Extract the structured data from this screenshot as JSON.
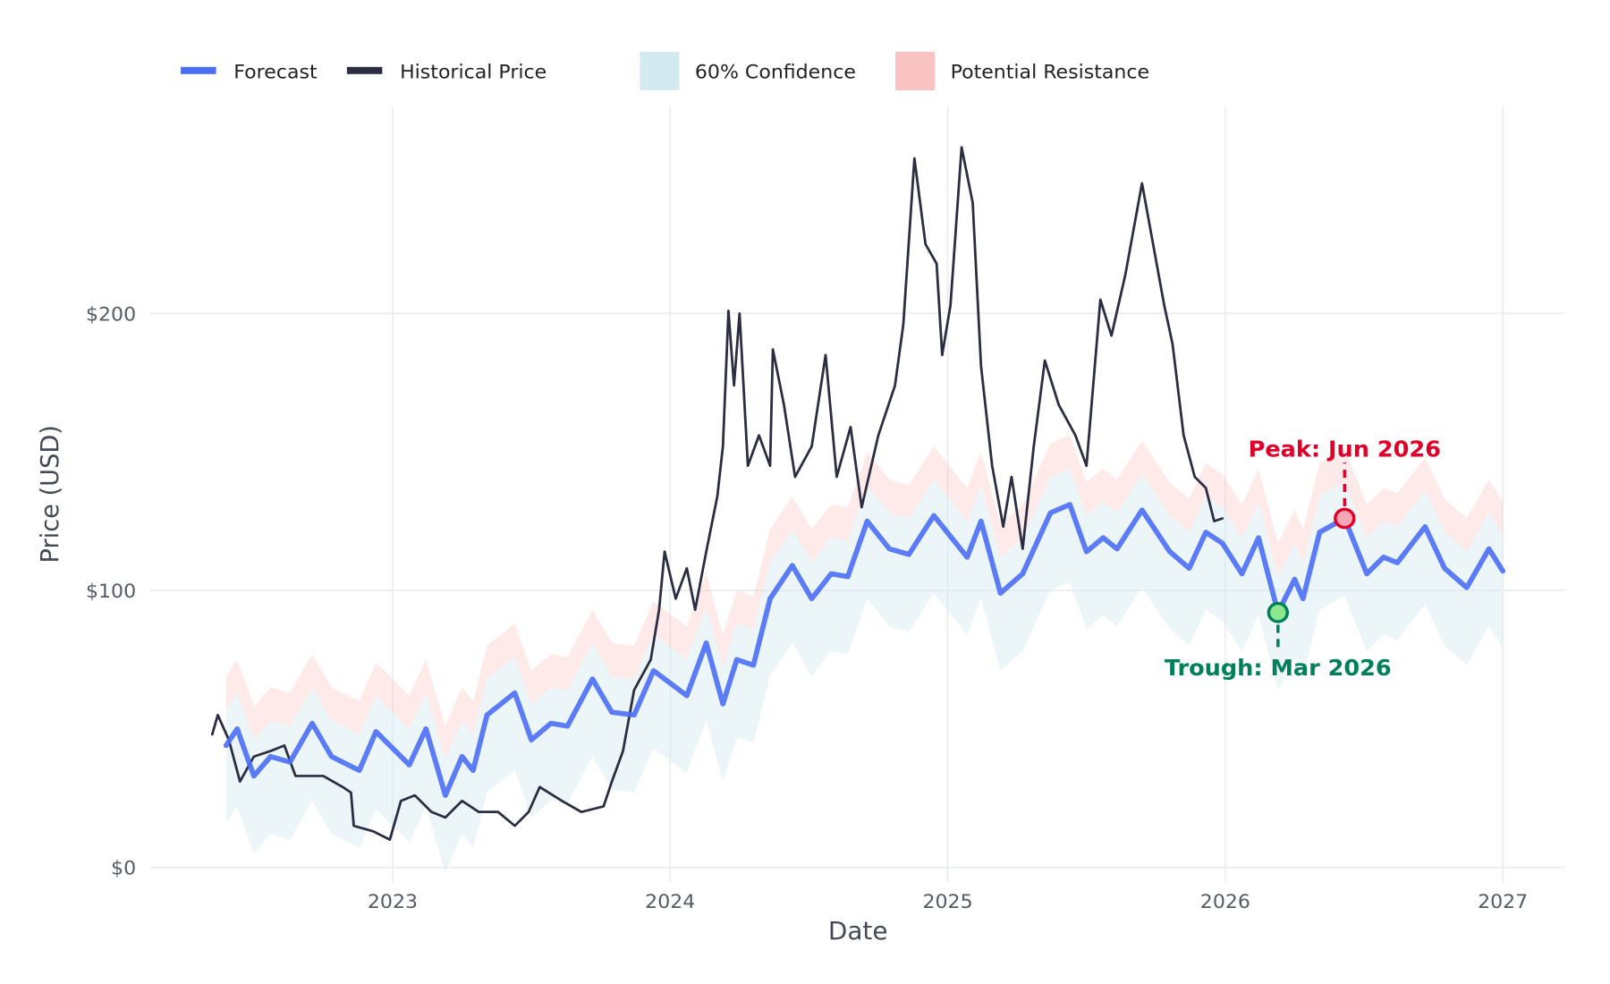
{
  "chart_data": {
    "type": "line",
    "title": "",
    "xlabel": "Date",
    "ylabel": "Price (USD)",
    "xlim": [
      2022.2,
      2027.22
    ],
    "ylim": [
      -5,
      262
    ],
    "grid": true,
    "legend_position": "top-left",
    "x_ticks": [
      {
        "value": 2023,
        "label": "2023"
      },
      {
        "value": 2024,
        "label": "2024"
      },
      {
        "value": 2025,
        "label": "2025"
      },
      {
        "value": 2026,
        "label": "2026"
      },
      {
        "value": 2027,
        "label": "2027"
      }
    ],
    "y_ticks": [
      {
        "value": 0,
        "label": "$0"
      },
      {
        "value": 100,
        "label": "$100"
      },
      {
        "value": 200,
        "label": "$200"
      }
    ],
    "legend": [
      {
        "name": "Forecast",
        "kind": "line",
        "color": "#4c6ef5"
      },
      {
        "name": "Historical Price",
        "kind": "line",
        "color": "#2b2d42"
      },
      {
        "name": "60% Confidence",
        "kind": "area",
        "color": "#d4eaf1"
      },
      {
        "name": "Potential Resistance",
        "kind": "area",
        "color": "#f8c3c0"
      }
    ],
    "bands": {
      "confidence": {
        "lower_offset": -28,
        "upper_offset": 13,
        "color": "#d4eaf1",
        "opacity": 0.45
      },
      "resistance": {
        "lower_offset": 13,
        "upper_offset": 25,
        "color": "#f8c3c0",
        "opacity": 0.35
      }
    },
    "series": [
      {
        "name": "Historical Price",
        "color": "#2b2d42",
        "points": [
          [
            2022.35,
            48
          ],
          [
            2022.37,
            55
          ],
          [
            2022.41,
            46
          ],
          [
            2022.45,
            31
          ],
          [
            2022.5,
            40
          ],
          [
            2022.56,
            42
          ],
          [
            2022.61,
            44
          ],
          [
            2022.65,
            33
          ],
          [
            2022.75,
            33
          ],
          [
            2022.82,
            29
          ],
          [
            2022.85,
            27
          ],
          [
            2022.86,
            15
          ],
          [
            2022.93,
            13
          ],
          [
            2022.99,
            10
          ],
          [
            2023.03,
            24
          ],
          [
            2023.08,
            26
          ],
          [
            2023.14,
            20
          ],
          [
            2023.19,
            18
          ],
          [
            2023.25,
            24
          ],
          [
            2023.31,
            20
          ],
          [
            2023.38,
            20
          ],
          [
            2023.44,
            15
          ],
          [
            2023.49,
            20
          ],
          [
            2023.53,
            29
          ],
          [
            2023.61,
            24
          ],
          [
            2023.68,
            20
          ],
          [
            2023.76,
            22
          ],
          [
            2023.79,
            31
          ],
          [
            2023.83,
            42
          ],
          [
            2023.87,
            64
          ],
          [
            2023.93,
            75
          ],
          [
            2023.96,
            93
          ],
          [
            2023.98,
            114
          ],
          [
            2024.02,
            97
          ],
          [
            2024.06,
            108
          ],
          [
            2024.09,
            93
          ],
          [
            2024.13,
            114
          ],
          [
            2024.17,
            134
          ],
          [
            2024.19,
            152
          ],
          [
            2024.21,
            201
          ],
          [
            2024.23,
            174
          ],
          [
            2024.25,
            200
          ],
          [
            2024.28,
            145
          ],
          [
            2024.32,
            156
          ],
          [
            2024.36,
            145
          ],
          [
            2024.37,
            187
          ],
          [
            2024.41,
            167
          ],
          [
            2024.45,
            141
          ],
          [
            2024.51,
            152
          ],
          [
            2024.56,
            185
          ],
          [
            2024.6,
            141
          ],
          [
            2024.65,
            159
          ],
          [
            2024.69,
            130
          ],
          [
            2024.75,
            156
          ],
          [
            2024.81,
            174
          ],
          [
            2024.84,
            196
          ],
          [
            2024.88,
            256
          ],
          [
            2024.92,
            225
          ],
          [
            2024.96,
            218
          ],
          [
            2024.98,
            185
          ],
          [
            2025.01,
            203
          ],
          [
            2025.05,
            260
          ],
          [
            2025.09,
            240
          ],
          [
            2025.12,
            181
          ],
          [
            2025.16,
            145
          ],
          [
            2025.2,
            123
          ],
          [
            2025.23,
            141
          ],
          [
            2025.27,
            115
          ],
          [
            2025.31,
            152
          ],
          [
            2025.35,
            183
          ],
          [
            2025.4,
            167
          ],
          [
            2025.46,
            156
          ],
          [
            2025.5,
            145
          ],
          [
            2025.55,
            205
          ],
          [
            2025.59,
            192
          ],
          [
            2025.64,
            214
          ],
          [
            2025.7,
            247
          ],
          [
            2025.74,
            225
          ],
          [
            2025.78,
            203
          ],
          [
            2025.81,
            189
          ],
          [
            2025.85,
            156
          ],
          [
            2025.89,
            141
          ],
          [
            2025.93,
            137
          ],
          [
            2025.96,
            125
          ],
          [
            2025.99,
            126
          ]
        ]
      },
      {
        "name": "Forecast",
        "color": "#4c6ef5",
        "points": [
          [
            2022.4,
            44
          ],
          [
            2022.44,
            50
          ],
          [
            2022.5,
            33
          ],
          [
            2022.56,
            40
          ],
          [
            2022.63,
            38
          ],
          [
            2022.71,
            52
          ],
          [
            2022.78,
            40
          ],
          [
            2022.88,
            35
          ],
          [
            2022.94,
            49
          ],
          [
            2023.06,
            37
          ],
          [
            2023.12,
            50
          ],
          [
            2023.19,
            26
          ],
          [
            2023.25,
            40
          ],
          [
            2023.29,
            35
          ],
          [
            2023.34,
            55
          ],
          [
            2023.44,
            63
          ],
          [
            2023.5,
            46
          ],
          [
            2023.57,
            52
          ],
          [
            2023.63,
            51
          ],
          [
            2023.72,
            68
          ],
          [
            2023.79,
            56
          ],
          [
            2023.87,
            55
          ],
          [
            2023.94,
            71
          ],
          [
            2024.06,
            62
          ],
          [
            2024.13,
            81
          ],
          [
            2024.19,
            59
          ],
          [
            2024.24,
            75
          ],
          [
            2024.3,
            73
          ],
          [
            2024.36,
            97
          ],
          [
            2024.44,
            109
          ],
          [
            2024.51,
            97
          ],
          [
            2024.58,
            106
          ],
          [
            2024.64,
            105
          ],
          [
            2024.71,
            125
          ],
          [
            2024.79,
            115
          ],
          [
            2024.86,
            113
          ],
          [
            2024.95,
            127
          ],
          [
            2025.07,
            112
          ],
          [
            2025.12,
            125
          ],
          [
            2025.19,
            99
          ],
          [
            2025.27,
            106
          ],
          [
            2025.37,
            128
          ],
          [
            2025.44,
            131
          ],
          [
            2025.5,
            114
          ],
          [
            2025.56,
            119
          ],
          [
            2025.61,
            115
          ],
          [
            2025.7,
            129
          ],
          [
            2025.8,
            114
          ],
          [
            2025.87,
            108
          ],
          [
            2025.93,
            121
          ],
          [
            2025.99,
            117
          ],
          [
            2026.06,
            106
          ],
          [
            2026.12,
            119
          ],
          [
            2026.19,
            92
          ],
          [
            2026.25,
            104
          ],
          [
            2026.28,
            97
          ],
          [
            2026.34,
            121
          ],
          [
            2026.43,
            126
          ],
          [
            2026.51,
            106
          ],
          [
            2026.57,
            112
          ],
          [
            2026.62,
            110
          ],
          [
            2026.72,
            123
          ],
          [
            2026.79,
            108
          ],
          [
            2026.87,
            101
          ],
          [
            2026.95,
            115
          ],
          [
            2027.0,
            107
          ]
        ]
      }
    ],
    "annotations": [
      {
        "label": "Peak: Jun 2026",
        "x": 2026.43,
        "y": 126,
        "color": "#e0002a",
        "fill": "#f4a6b5",
        "position": "above"
      },
      {
        "label": "Trough: Mar 2026",
        "x": 2026.19,
        "y": 92,
        "color": "#00805a",
        "fill": "#8ee68f",
        "position": "below"
      }
    ]
  }
}
